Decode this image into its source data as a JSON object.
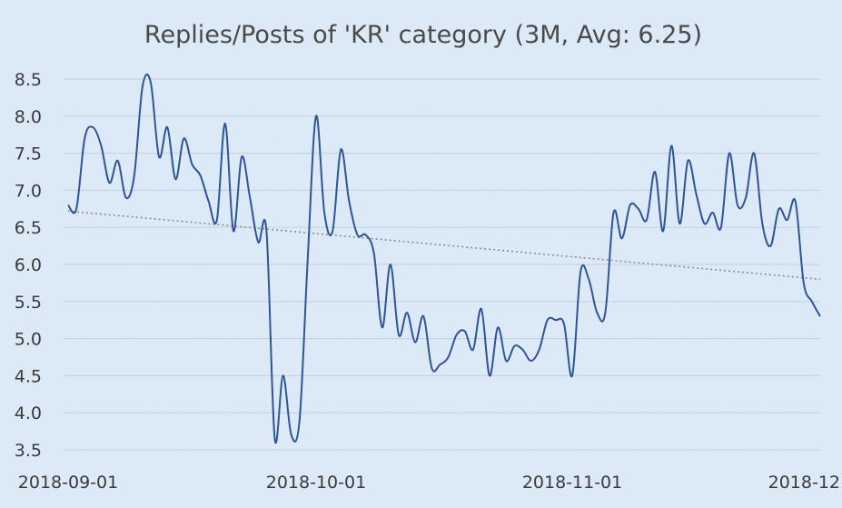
{
  "chart_data": {
    "type": "line",
    "title": "Replies/Posts of 'KR' category (3M, Avg: 6.25)",
    "xlabel": "",
    "ylabel": "",
    "ylim": [
      3.5,
      8.5
    ],
    "y_ticks": [
      "3.5",
      "4.0",
      "4.5",
      "5.0",
      "5.5",
      "6.0",
      "6.5",
      "7.0",
      "7.5",
      "8.0",
      "8.5"
    ],
    "x_ticks": [
      {
        "label": "2018-09-01",
        "x": 0
      },
      {
        "label": "2018-10-01",
        "x": 30
      },
      {
        "label": "2018-11-01",
        "x": 61
      },
      {
        "label": "2018-12",
        "x": 91
      }
    ],
    "grid": true,
    "legend": "none",
    "colors": {
      "line": "#2f5597",
      "trend": "#8c8c8c",
      "grid": "#c9d3df",
      "background": "#d6e6f5"
    },
    "series": [
      {
        "values": [
          6.8,
          6.75,
          7.7,
          7.85,
          7.6,
          7.1,
          7.4,
          6.9,
          7.2,
          8.4,
          8.45,
          7.45,
          7.85,
          7.15,
          7.7,
          7.35,
          7.2,
          6.85,
          6.6,
          7.9,
          6.45,
          7.45,
          6.9,
          6.3,
          6.45,
          3.65,
          4.5,
          3.7,
          3.9,
          6.1,
          8.0,
          6.7,
          6.45,
          7.55,
          6.85,
          6.4,
          6.4,
          6.15,
          5.15,
          6.0,
          5.05,
          5.35,
          4.95,
          5.3,
          4.6,
          4.65,
          4.75,
          5.05,
          5.1,
          4.85,
          5.4,
          4.5,
          5.15,
          4.7,
          4.9,
          4.85,
          4.7,
          4.85,
          5.25,
          5.25,
          5.2,
          4.5,
          5.9,
          5.8,
          5.35,
          5.35,
          6.7,
          6.35,
          6.8,
          6.75,
          6.6,
          7.25,
          6.45,
          7.6,
          6.55,
          7.4,
          6.95,
          6.55,
          6.7,
          6.5,
          7.5,
          6.8,
          6.9,
          7.5,
          6.55,
          6.25,
          6.75,
          6.6,
          6.85,
          5.75,
          5.5,
          5.3
        ]
      },
      {
        "name": "trend",
        "values": [
          6.72,
          5.8
        ]
      }
    ]
  }
}
